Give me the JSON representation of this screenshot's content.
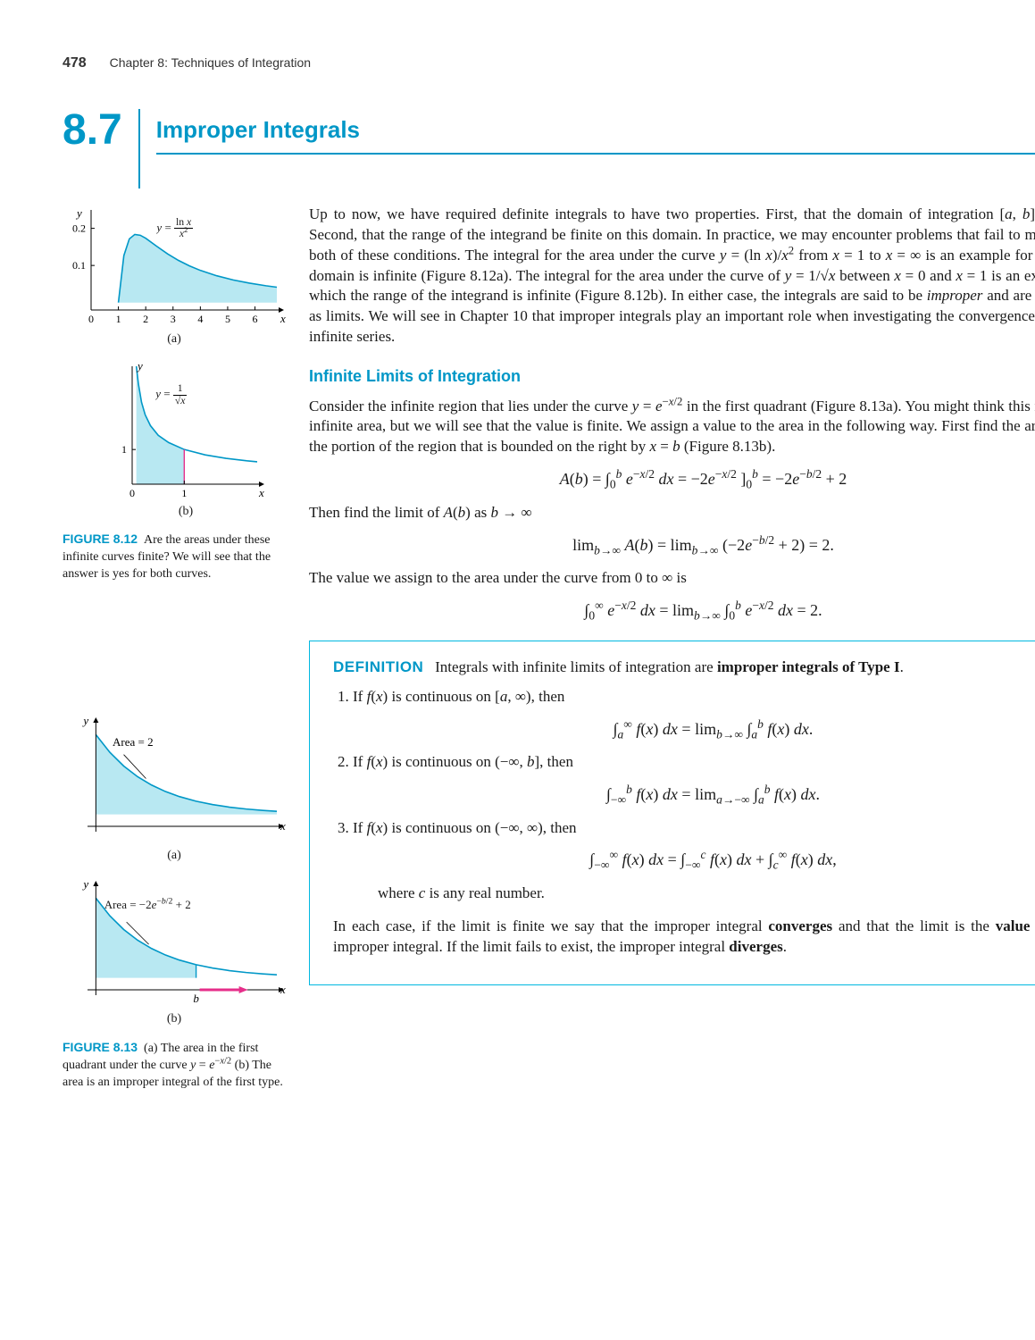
{
  "running_head": {
    "page": "478",
    "chapter": "Chapter 8: Techniques of Integration"
  },
  "section": {
    "number": "8.7",
    "title": "Improper Integrals"
  },
  "intro_paragraph_html": "Up to now, we have required definite integrals to have two properties. First, that the domain of integration [<span class='ital'>a</span>, <span class='ital'>b</span>] be finite. Second, that the range of the integrand be finite on this domain. In practice, we may encounter problems that fail to meet one or both of these conditions. The integral for the area under the curve <span class='ital'>y</span> = (ln <span class='ital'>x</span>)/<span class='ital'>x</span><sup>2</sup> from <span class='ital'>x</span> = 1 to <span class='ital'>x</span> = ∞ is an example for which the domain is infinite (Figure 8.12a). The integral for the area under the curve of <span class='ital'>y</span> = 1/√<span class='ital'>x</span> between <span class='ital'>x</span> = 0 and <span class='ital'>x</span> = 1 is an example for which the range of the integrand is infinite (Figure 8.12b). In either case, the integrals are said to be <span class='ital'>improper</span> and are calculated as limits. We will see in Chapter 10 that improper integrals play an important role when investigating the convergence of certain infinite series.",
  "subsection_title": "Infinite Limits of Integration",
  "para2_html": "Consider the infinite region that lies under the curve <span class='ital'>y</span> = <span class='ital'>e</span><sup>−<span class='ital'>x</span>/2</sup> in the first quadrant (Figure 8.13a). You might think this region has infinite area, but we will see that the value is finite. We assign a value to the area in the following way. First find the area <span class='ital'>A</span>(<span class='ital'>b</span>) of the portion of the region that is bounded on the right by <span class='ital'>x</span> = <span class='ital'>b</span> (Figure 8.13b).",
  "eq1_html": "<span class='ital'>A</span>(<span class='ital'>b</span>) = ∫<sub>0</sub><sup><span class='ital'>b</span></sup> <span class='ital'>e</span><sup>−<span class='ital'>x</span>/2</sup> <span class='ital'>dx</span> = −2<span class='ital'>e</span><sup>−<span class='ital'>x</span>/2</sup> ]<sub>0</sub><sup><span class='ital'>b</span></sup> = −2<span class='ital'>e</span><sup>−<span class='ital'>b</span>/2</sup> + 2",
  "para3_html": "Then find the limit of <span class='ital'>A</span>(<span class='ital'>b</span>) as <span class='ital'>b</span> → ∞",
  "eq2_html": "lim<sub><span class='ital'>b</span>→∞</sub> <span class='ital'>A</span>(<span class='ital'>b</span>) = lim<sub><span class='ital'>b</span>→∞</sub> (−2<span class='ital'>e</span><sup>−<span class='ital'>b</span>/2</sup> + 2) = 2.",
  "para4": "The value we assign to the area under the curve from 0 to ∞ is",
  "eq3_html": "∫<sub>0</sub><sup>∞</sup> <span class='ital'>e</span><sup>−<span class='ital'>x</span>/2</sup> <span class='ital'>dx</span> = lim<sub><span class='ital'>b</span>→∞</sub> ∫<sub>0</sub><sup><span class='ital'>b</span></sup> <span class='ital'>e</span><sup>−<span class='ital'>x</span>/2</sup> <span class='ital'>dx</span> = 2.",
  "definition": {
    "head": "DEFINITION",
    "intro_html": "&nbsp;&nbsp;&nbsp;Integrals with infinite limits of integration are <span class='bold'>improper integrals of Type I</span>.",
    "items": [
      {
        "text_html": "If <span class='ital'>f</span>(<span class='ital'>x</span>) is continuous on [<span class='ital'>a</span>, ∞), then",
        "eq_html": "∫<sub><span class='ital'>a</span></sub><sup>∞</sup> <span class='ital'>f</span>(<span class='ital'>x</span>) <span class='ital'>dx</span> = lim<sub><span class='ital'>b</span>→∞</sub> ∫<sub><span class='ital'>a</span></sub><sup><span class='ital'>b</span></sup> <span class='ital'>f</span>(<span class='ital'>x</span>) <span class='ital'>dx</span>."
      },
      {
        "text_html": "If <span class='ital'>f</span>(<span class='ital'>x</span>) is continuous on (−∞, <span class='ital'>b</span>], then",
        "eq_html": "∫<sub>−∞</sub><sup><span class='ital'>b</span></sup> <span class='ital'>f</span>(<span class='ital'>x</span>) <span class='ital'>dx</span> = lim<sub><span class='ital'>a</span>→−∞</sub> ∫<sub><span class='ital'>a</span></sub><sup><span class='ital'>b</span></sup> <span class='ital'>f</span>(<span class='ital'>x</span>) <span class='ital'>dx</span>."
      },
      {
        "text_html": "If <span class='ital'>f</span>(<span class='ital'>x</span>) is continuous on (−∞, ∞), then",
        "eq_html": "∫<sub>−∞</sub><sup>∞</sup> <span class='ital'>f</span>(<span class='ital'>x</span>) <span class='ital'>dx</span> = ∫<sub>−∞</sub><sup><span class='ital'>c</span></sup> <span class='ital'>f</span>(<span class='ital'>x</span>) <span class='ital'>dx</span> + ∫<sub><span class='ital'>c</span></sub><sup>∞</sup> <span class='ital'>f</span>(<span class='ital'>x</span>) <span class='ital'>dx</span>,",
        "tail_html": "where <span class='ital'>c</span> is any real number."
      }
    ],
    "closing_html": "In each case, if the limit is finite we say that the improper integral <span class='bold'>converges</span> and that the limit is the <span class='bold'>value</span> of the improper integral. If the limit fails to exist, the improper integral <span class='bold'>diverges</span>."
  },
  "figure12": {
    "label": "FIGURE 8.12",
    "caption": "Are the areas under these infinite curves finite? We will see that the answer is yes for both curves.",
    "a": {
      "sublabel": "(a)",
      "curve_label_html": "<span class='ital'>y</span> = <span class='frac'><span class='num'>ln <span class='ital'>x</span></span><span class='den'><span class='ital'>x</span><sup>2</sup></span></span>",
      "xticks": [
        0,
        1,
        2,
        3,
        4,
        5,
        6
      ],
      "yticks_labels": [
        "0.1",
        "0.2"
      ],
      "yticks": [
        0.1,
        0.2
      ],
      "xlim": [
        0,
        6.8
      ],
      "ylim": [
        -0.02,
        0.24
      ],
      "curve_x": [
        1,
        1.2,
        1.4,
        1.6,
        1.8,
        2.0,
        2.4,
        2.8,
        3.2,
        3.6,
        4.0,
        4.6,
        5.2,
        5.8,
        6.4,
        6.8
      ],
      "curve_y": [
        0,
        0.1266,
        0.1716,
        0.1836,
        0.1814,
        0.1733,
        0.1519,
        0.1313,
        0.1136,
        0.0989,
        0.0867,
        0.0722,
        0.061,
        0.0523,
        0.0453,
        0.0414
      ],
      "colors": {
        "axis": "#000",
        "fill": "#b8e8f2",
        "stroke": "#0097c7",
        "tick": "#000"
      }
    },
    "b": {
      "sublabel": "(b)",
      "curve_label_html": "<span class='ital'>y</span> = <span class='frac'><span class='num'>1</span><span class='den'>√<span class='ital'>x</span></span></span>",
      "xticks": [
        0,
        1
      ],
      "yticks": [
        1
      ],
      "yticks_labels": [
        "1"
      ],
      "xlim": [
        0,
        2.4
      ],
      "ylim": [
        0,
        3.4
      ],
      "curve_x": [
        0.08,
        0.12,
        0.18,
        0.25,
        0.35,
        0.5,
        0.7,
        1.0,
        1.4,
        1.8,
        2.2,
        2.4
      ],
      "curve_y": [
        3.4,
        2.89,
        2.36,
        2.0,
        1.69,
        1.41,
        1.2,
        1.0,
        0.845,
        0.745,
        0.674,
        0.646
      ],
      "vline_x": 1.0,
      "colors": {
        "axis": "#000",
        "fill": "#b8e8f2",
        "stroke": "#0097c7",
        "vline": "#e62e8a"
      }
    }
  },
  "figure13": {
    "label": "FIGURE 8.13",
    "caption_html": "(a) The area in the first quadrant under the curve <span class='ital'>y</span> = <span class='ital'>e</span><sup>−<span class='ital'>x</span>/2</sup> (b) The area is an improper integral of the first type.",
    "a": {
      "sublabel": "(a)",
      "annot": "Area = 2",
      "xlim": [
        -0.3,
        6.5
      ],
      "ylim": [
        -0.15,
        1.15
      ],
      "curve_x": [
        0,
        0.5,
        1.0,
        1.5,
        2.0,
        2.5,
        3.0,
        3.6,
        4.2,
        4.8,
        5.4,
        6.0,
        6.5
      ],
      "curve_y": [
        1.0,
        0.7788,
        0.6065,
        0.4724,
        0.3679,
        0.2865,
        0.2231,
        0.1653,
        0.1225,
        0.0907,
        0.0672,
        0.0498,
        0.0388
      ],
      "colors": {
        "axis": "#000",
        "fill": "#b8e8f2",
        "stroke": "#0097c7"
      }
    },
    "b": {
      "sublabel": "(b)",
      "annot_html": "Area = −2<span class='ital'>e</span><sup>−<span class='ital'>b</span>/2</sup> + 2",
      "b_tick_label": "b",
      "b_value": 3.6,
      "xlim": [
        -0.3,
        6.5
      ],
      "ylim": [
        -0.15,
        1.15
      ],
      "curve_x": [
        0,
        0.5,
        1.0,
        1.5,
        2.0,
        2.5,
        3.0,
        3.6,
        4.2,
        4.8,
        5.4,
        6.0,
        6.5
      ],
      "curve_y": [
        1.0,
        0.7788,
        0.6065,
        0.4724,
        0.3679,
        0.2865,
        0.2231,
        0.1653,
        0.1225,
        0.0907,
        0.0672,
        0.0498,
        0.0388
      ],
      "colors": {
        "axis": "#000",
        "fill": "#b8e8f2",
        "stroke": "#0097c7",
        "vline": "#0097c7",
        "arrow": "#e62e8a"
      }
    }
  }
}
